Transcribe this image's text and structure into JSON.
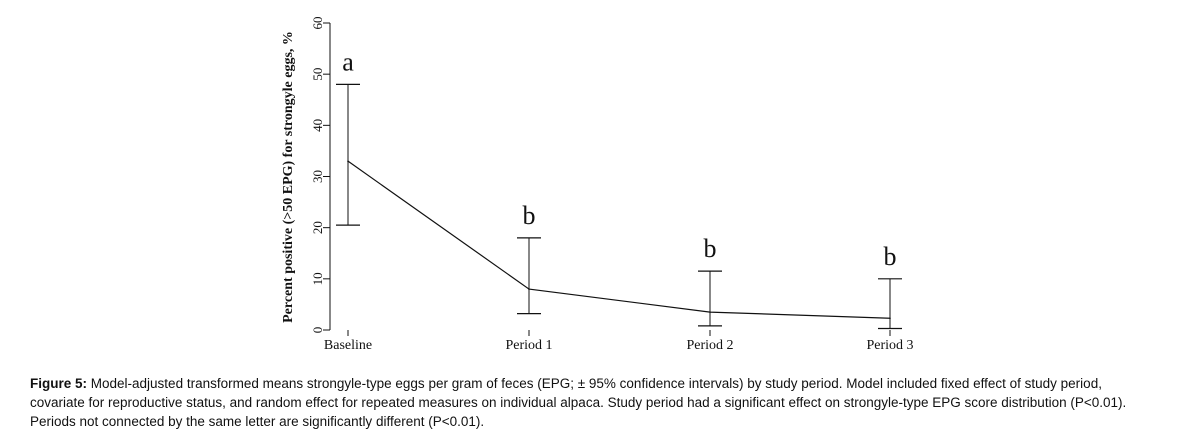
{
  "chart_data": {
    "type": "line",
    "categories": [
      "Baseline",
      "Period 1",
      "Period 2",
      "Period 3"
    ],
    "values": [
      33,
      8,
      3.5,
      2.3
    ],
    "ci_upper": [
      48,
      18,
      11.5,
      10
    ],
    "ci_lower": [
      20.5,
      3.2,
      0.8,
      0.3
    ],
    "letters": [
      "a",
      "b",
      "b",
      "b"
    ],
    "ylabel": "Percent positive (>50 EPG) for strongyle eggs, %",
    "ylim": [
      0,
      60
    ],
    "yticks": [
      0,
      10,
      20,
      30,
      40,
      50,
      60
    ],
    "grid": false
  },
  "caption": {
    "label": "Figure 5:",
    "text": " Model-adjusted transformed means strongyle-type eggs per gram of feces (EPG; ± 95% confidence intervals) by study period. Model included fixed effect of study period, covariate for reproductive status, and random effect for repeated measures on individual alpaca. Study period had a significant effect on strongyle-type EPG score distribution (P<0.01). Periods not connected by the same letter are significantly different (P<0.01)."
  }
}
